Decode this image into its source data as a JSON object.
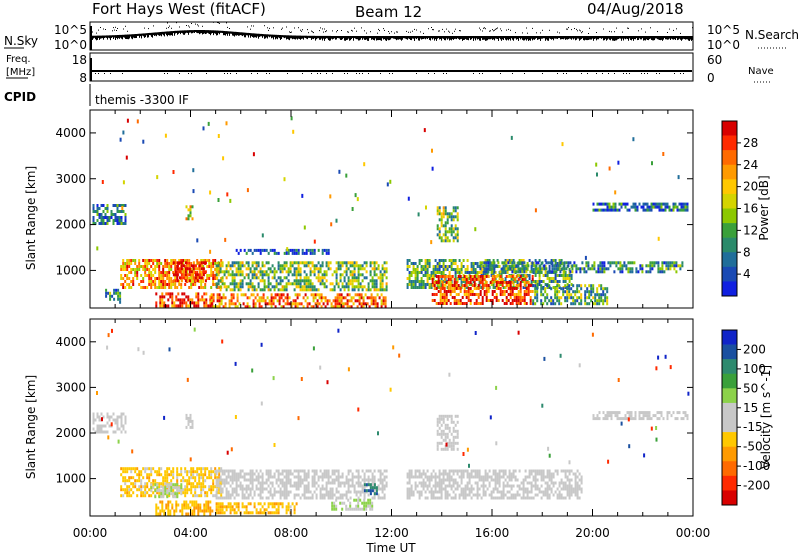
{
  "header": {
    "station": "Fort Hays West (fitACF)",
    "beam": "Beam 12",
    "date": "04/Aug/2018"
  },
  "noise_panel": {
    "left_label": "N.Sky",
    "left_ticks": [
      "10^5",
      "10^0"
    ],
    "right_label": "N.Search",
    "right_ticks": [
      "10^5",
      "10^0"
    ]
  },
  "freq_panel": {
    "left_label_line1": "Freq.",
    "left_label_line2": "[MHz]",
    "left_ticks": [
      "18",
      "8"
    ],
    "right_label": "Nave",
    "right_ticks": [
      "60",
      "0"
    ]
  },
  "cpid_panel": {
    "label": "CPID",
    "value": "themis -3300 IF"
  },
  "time_axis": {
    "label": "Time UT",
    "ticks": [
      "00:00",
      "04:00",
      "08:00",
      "12:00",
      "16:00",
      "20:00",
      "00:00"
    ]
  },
  "power_colorbar": {
    "title": "Power [dB]",
    "ticks": [
      "28",
      "24",
      "20",
      "16",
      "12",
      "8",
      "4"
    ],
    "colors": [
      "#d80000",
      "#ff2a00",
      "#ff6a00",
      "#ff9a00",
      "#ffc800",
      "#d4d400",
      "#8cc800",
      "#3aa03a",
      "#2a8a6a",
      "#206e9a",
      "#1a4ab4",
      "#1020e0"
    ]
  },
  "velocity_colorbar": {
    "title": "Velocity [m s^-1]",
    "ticks": [
      "200",
      "100",
      "50",
      "15",
      "-15",
      "-50",
      "-100",
      "-200"
    ],
    "colors": [
      "#1024c8",
      "#1a50a0",
      "#2e8a6e",
      "#3aa03a",
      "#8cd24a",
      "#c8c8c8",
      "#c8c8c8",
      "#ffc800",
      "#ff9a00",
      "#ff6a00",
      "#ff2a00",
      "#d80000"
    ]
  },
  "chart_data": [
    {
      "type": "heatmap",
      "title": "",
      "xlabel": "Time UT",
      "ylabel": "Slant Range [km]",
      "x_range_hours": [
        0,
        24
      ],
      "ylim": [
        180,
        4500
      ],
      "y_ticks": [
        1000,
        2000,
        3000,
        4000
      ],
      "quantity": "Power",
      "units": "dB",
      "value_range": [
        2,
        30
      ],
      "echo_regions": [
        {
          "t_start": 0.1,
          "t_end": 1.4,
          "r_min": 2000,
          "r_max": 2450,
          "value": 8
        },
        {
          "t_start": 0.6,
          "t_end": 1.2,
          "r_min": 280,
          "r_max": 600,
          "value": 10
        },
        {
          "t_start": 1.2,
          "t_end": 5.2,
          "r_min": 620,
          "r_max": 1250,
          "value": 22
        },
        {
          "t_start": 2.6,
          "t_end": 4.9,
          "r_min": 220,
          "r_max": 520,
          "value": 26
        },
        {
          "t_start": 3.3,
          "t_end": 4.6,
          "r_min": 760,
          "r_max": 1200,
          "value": 28
        },
        {
          "t_start": 3.8,
          "t_end": 4.1,
          "r_min": 2150,
          "r_max": 2420,
          "value": 18
        },
        {
          "t_start": 5.0,
          "t_end": 11.8,
          "r_min": 560,
          "r_max": 1200,
          "value": 14
        },
        {
          "t_start": 4.8,
          "t_end": 11.8,
          "r_min": 220,
          "r_max": 500,
          "value": 24
        },
        {
          "t_start": 5.8,
          "t_end": 9.5,
          "r_min": 1380,
          "r_max": 1470,
          "value": 6
        },
        {
          "t_start": 12.6,
          "t_end": 19.2,
          "r_min": 600,
          "r_max": 1250,
          "value": 12
        },
        {
          "t_start": 13.6,
          "t_end": 17.6,
          "r_min": 280,
          "r_max": 900,
          "value": 26
        },
        {
          "t_start": 13.8,
          "t_end": 14.6,
          "r_min": 1650,
          "r_max": 2400,
          "value": 14
        },
        {
          "t_start": 15.5,
          "t_end": 23.6,
          "r_min": 960,
          "r_max": 1200,
          "value": 10
        },
        {
          "t_start": 20.0,
          "t_end": 23.8,
          "r_min": 2300,
          "r_max": 2480,
          "value": 8
        },
        {
          "t_start": 17.6,
          "t_end": 20.6,
          "r_min": 260,
          "r_max": 700,
          "value": 12
        }
      ]
    },
    {
      "type": "heatmap",
      "title": "",
      "xlabel": "Time UT",
      "ylabel": "Slant Range [km]",
      "x_range_hours": [
        0,
        24
      ],
      "ylim": [
        180,
        4500
      ],
      "y_ticks": [
        1000,
        2000,
        3000,
        4000
      ],
      "quantity": "Velocity",
      "units": "m s^-1",
      "value_range": [
        -250,
        250
      ],
      "echo_regions": [
        {
          "t_start": 0.1,
          "t_end": 1.4,
          "r_min": 2000,
          "r_max": 2450,
          "value": 0
        },
        {
          "t_start": 1.2,
          "t_end": 5.2,
          "r_min": 620,
          "r_max": 1250,
          "value": -60
        },
        {
          "t_start": 2.6,
          "t_end": 4.9,
          "r_min": 220,
          "r_max": 520,
          "value": -80
        },
        {
          "t_start": 2.4,
          "t_end": 3.6,
          "r_min": 620,
          "r_max": 900,
          "value": 40
        },
        {
          "t_start": 3.8,
          "t_end": 4.1,
          "r_min": 2150,
          "r_max": 2420,
          "value": 0
        },
        {
          "t_start": 5.0,
          "t_end": 11.8,
          "r_min": 600,
          "r_max": 1200,
          "value": 0
        },
        {
          "t_start": 5.0,
          "t_end": 8.2,
          "r_min": 220,
          "r_max": 480,
          "value": -70
        },
        {
          "t_start": 9.6,
          "t_end": 11.2,
          "r_min": 300,
          "r_max": 560,
          "value": 40
        },
        {
          "t_start": 10.9,
          "t_end": 11.4,
          "r_min": 640,
          "r_max": 900,
          "value": 160
        },
        {
          "t_start": 12.6,
          "t_end": 19.6,
          "r_min": 560,
          "r_max": 1200,
          "value": 0
        },
        {
          "t_start": 13.8,
          "t_end": 14.6,
          "r_min": 1650,
          "r_max": 2400,
          "value": 0
        },
        {
          "t_start": 20.0,
          "t_end": 23.8,
          "r_min": 2300,
          "r_max": 2480,
          "value": 0
        }
      ]
    }
  ]
}
